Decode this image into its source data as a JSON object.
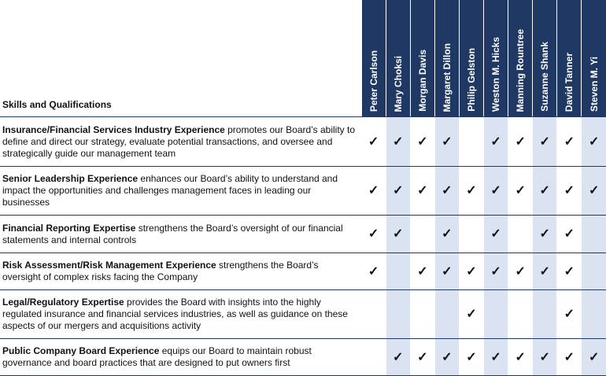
{
  "header": {
    "skills_label": "Skills and Qualifications",
    "directors": [
      "Peter Carlson",
      "Mary Choksi",
      "Morgan Davis",
      "Margaret Dillon",
      "Philip Gelston",
      "Weston M. Hicks",
      "Manning Rountree",
      "Suzanne Shank",
      "David Tanner",
      "Steven M. Yi"
    ]
  },
  "check_glyph": "✓",
  "colors": {
    "header_bg": "#1f3864",
    "alt_column_bg": "#dbe2f2",
    "rule": "#1f3864"
  },
  "rows": [
    {
      "title": "Insurance/Financial Services Industry Experience",
      "text": " promotes our Board’s ability to define and direct our strategy, evaluate potential transactions, and oversee and strategically guide our management team",
      "checks": [
        1,
        1,
        1,
        1,
        0,
        1,
        1,
        1,
        1,
        1
      ]
    },
    {
      "title": "Senior Leadership Experience",
      "text": " enhances our Board’s ability to understand and impact the opportunities and challenges management faces in leading our businesses",
      "checks": [
        1,
        1,
        1,
        1,
        1,
        1,
        1,
        1,
        1,
        1
      ]
    },
    {
      "title": "Financial Reporting Expertise",
      "text": " strengthens the Board’s oversight of our financial statements and internal controls",
      "checks": [
        1,
        1,
        0,
        1,
        0,
        1,
        0,
        1,
        1,
        0
      ]
    },
    {
      "title": "Risk Assessment/Risk Management Experience",
      "text": " strengthens the Board’s oversight of complex risks facing the Company",
      "checks": [
        1,
        0,
        1,
        1,
        1,
        1,
        1,
        1,
        1,
        0
      ]
    },
    {
      "title": "Legal/Regulatory Expertise",
      "text": " provides the Board with insights into the highly regulated insurance and financial services industries, as well as guidance on these aspects of our mergers and acquisitions activity",
      "checks": [
        0,
        0,
        0,
        0,
        1,
        0,
        0,
        0,
        1,
        0
      ]
    },
    {
      "title": "Public Company Board Experience",
      "text": " equips our Board to maintain robust governance and board practices that are designed to put owners first",
      "checks": [
        0,
        1,
        1,
        1,
        1,
        1,
        1,
        1,
        1,
        1
      ]
    }
  ]
}
